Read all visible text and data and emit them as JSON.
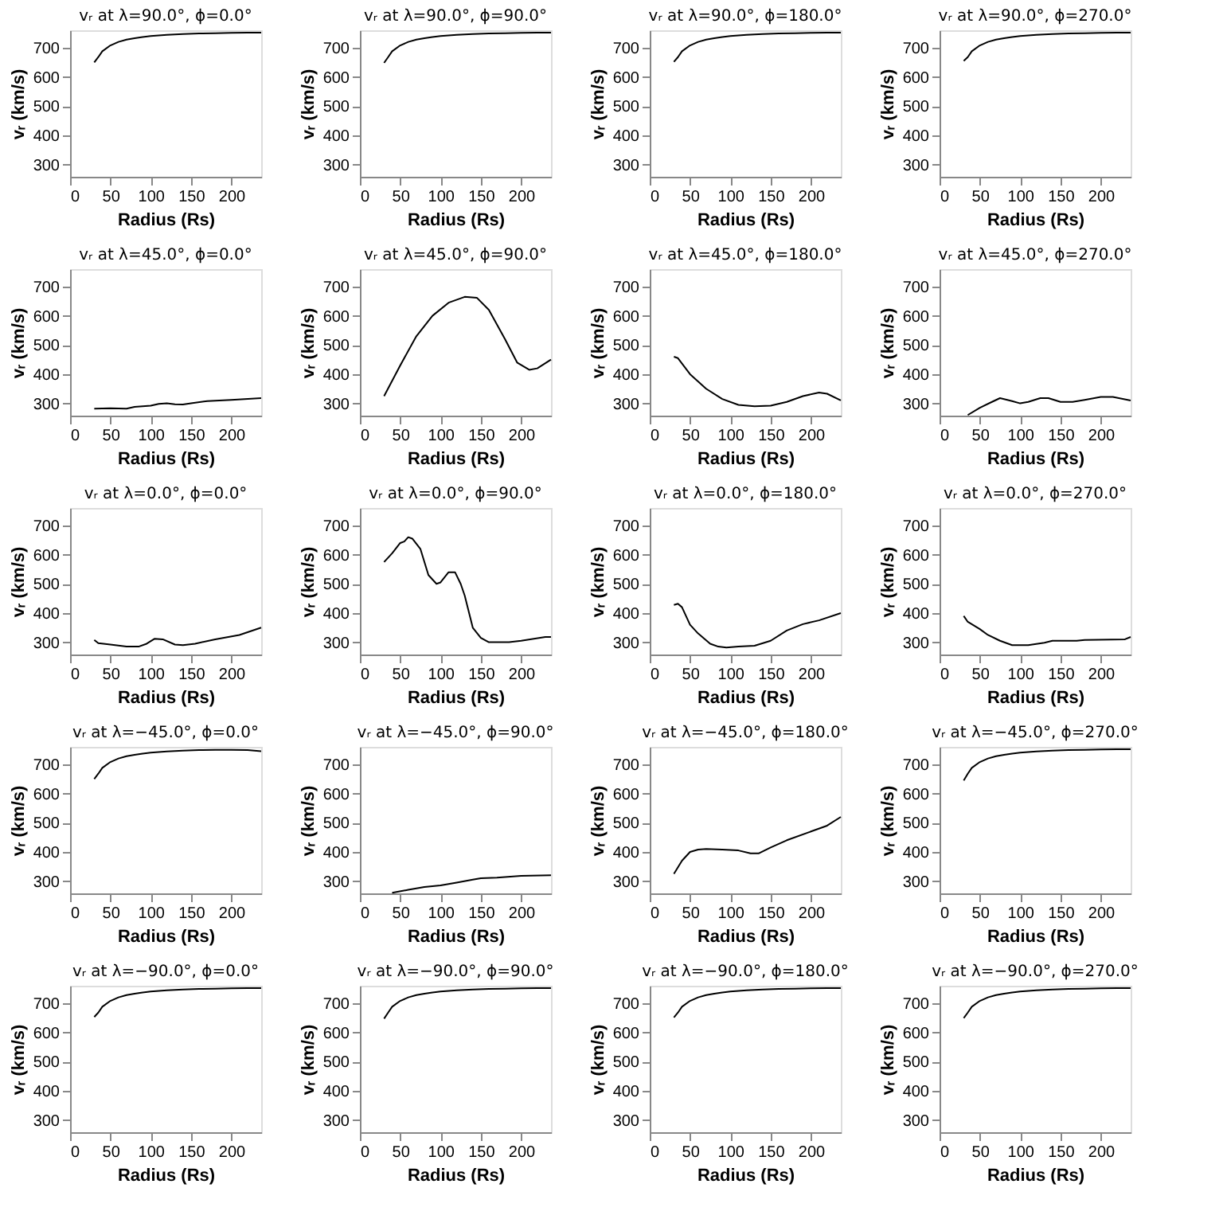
{
  "chart_data": [
    {
      "type": "line",
      "title": "vᵣ at λ=90.0°, ϕ=0.0°",
      "xlabel": "Radius (Rs)",
      "ylabel": "vᵣ (km/s)",
      "x": [
        30,
        35,
        40,
        50,
        60,
        70,
        80,
        90,
        100,
        120,
        140,
        160,
        180,
        200,
        220,
        237
      ],
      "values": [
        650,
        668,
        688,
        708,
        720,
        728,
        733,
        737,
        740,
        744,
        747,
        749,
        750,
        751,
        752,
        752
      ],
      "color": "#000000",
      "xlim": [
        0,
        237
      ],
      "ylim": [
        258,
        760
      ],
      "xticks": [
        0,
        50,
        100,
        150,
        200
      ],
      "yticks": [
        300,
        400,
        500,
        600,
        700
      ],
      "grid": false
    },
    {
      "type": "line",
      "title": "vᵣ at λ=90.0°, ϕ=90.0°",
      "xlabel": "Radius (Rs)",
      "ylabel": "vᵣ (km/s)",
      "x": [
        30,
        35,
        40,
        50,
        60,
        70,
        80,
        90,
        100,
        120,
        140,
        160,
        180,
        200,
        220,
        237
      ],
      "values": [
        648,
        668,
        688,
        708,
        720,
        728,
        733,
        737,
        740,
        744,
        747,
        749,
        750,
        751,
        752,
        752
      ],
      "color": "#000000",
      "xlim": [
        0,
        237
      ],
      "ylim": [
        258,
        760
      ],
      "xticks": [
        0,
        50,
        100,
        150,
        200
      ],
      "yticks": [
        300,
        400,
        500,
        600,
        700
      ],
      "grid": false
    },
    {
      "type": "line",
      "title": "vᵣ at λ=90.0°, ϕ=180.0°",
      "xlabel": "Radius (Rs)",
      "ylabel": "vᵣ (km/s)",
      "x": [
        30,
        35,
        40,
        50,
        60,
        70,
        80,
        90,
        100,
        120,
        140,
        160,
        180,
        200,
        220,
        237
      ],
      "values": [
        652,
        668,
        688,
        708,
        720,
        728,
        733,
        737,
        740,
        744,
        747,
        749,
        750,
        751,
        752,
        752
      ],
      "color": "#000000",
      "xlim": [
        0,
        237
      ],
      "ylim": [
        258,
        760
      ],
      "xticks": [
        0,
        50,
        100,
        150,
        200
      ],
      "yticks": [
        300,
        400,
        500,
        600,
        700
      ],
      "grid": false
    },
    {
      "type": "line",
      "title": "vᵣ at λ=90.0°, ϕ=270.0°",
      "xlabel": "Radius (Rs)",
      "ylabel": "vᵣ (km/s)",
      "x": [
        30,
        35,
        40,
        50,
        60,
        70,
        80,
        90,
        100,
        120,
        140,
        160,
        180,
        200,
        220,
        237
      ],
      "values": [
        655,
        668,
        688,
        708,
        720,
        728,
        733,
        737,
        740,
        744,
        747,
        749,
        750,
        751,
        752,
        752
      ],
      "color": "#000000",
      "xlim": [
        0,
        237
      ],
      "ylim": [
        258,
        760
      ],
      "xticks": [
        0,
        50,
        100,
        150,
        200
      ],
      "yticks": [
        300,
        400,
        500,
        600,
        700
      ],
      "grid": false
    },
    {
      "type": "line",
      "title": "vᵣ at λ=45.0°, ϕ=0.0°",
      "xlabel": "Radius (Rs)",
      "ylabel": "vᵣ (km/s)",
      "x": [
        30,
        50,
        70,
        80,
        100,
        110,
        120,
        130,
        140,
        150,
        170,
        200,
        237
      ],
      "values": [
        282,
        283,
        282,
        288,
        292,
        298,
        300,
        297,
        296,
        300,
        308,
        312,
        318
      ],
      "color": "#000000",
      "xlim": [
        0,
        237
      ],
      "ylim": [
        258,
        760
      ],
      "xticks": [
        0,
        50,
        100,
        150,
        200
      ],
      "yticks": [
        300,
        400,
        500,
        600,
        700
      ],
      "grid": false
    },
    {
      "type": "line",
      "title": "vᵣ at λ=45.0°, ϕ=90.0°",
      "xlabel": "Radius (Rs)",
      "ylabel": "vᵣ (km/s)",
      "x": [
        30,
        50,
        70,
        90,
        110,
        130,
        145,
        160,
        180,
        195,
        210,
        220,
        237
      ],
      "values": [
        325,
        430,
        530,
        600,
        645,
        665,
        662,
        620,
        520,
        440,
        415,
        420,
        450
      ],
      "color": "#000000",
      "xlim": [
        0,
        237
      ],
      "ylim": [
        258,
        760
      ],
      "xticks": [
        0,
        50,
        100,
        150,
        200
      ],
      "yticks": [
        300,
        400,
        500,
        600,
        700
      ],
      "grid": false
    },
    {
      "type": "line",
      "title": "vᵣ at λ=45.0°, ϕ=180.0°",
      "xlabel": "Radius (Rs)",
      "ylabel": "vᵣ (km/s)",
      "x": [
        30,
        35,
        50,
        70,
        90,
        110,
        130,
        150,
        170,
        190,
        210,
        220,
        237
      ],
      "values": [
        460,
        455,
        400,
        350,
        315,
        295,
        290,
        292,
        305,
        325,
        337,
        333,
        310
      ],
      "color": "#000000",
      "xlim": [
        0,
        237
      ],
      "ylim": [
        258,
        760
      ],
      "xticks": [
        0,
        50,
        100,
        150,
        200
      ],
      "yticks": [
        300,
        400,
        500,
        600,
        700
      ],
      "grid": false
    },
    {
      "type": "line",
      "title": "vᵣ at λ=45.0°, ϕ=270.0°",
      "xlabel": "Radius (Rs)",
      "ylabel": "vᵣ (km/s)",
      "x": [
        35,
        50,
        65,
        75,
        90,
        100,
        110,
        125,
        135,
        150,
        165,
        180,
        200,
        215,
        237
      ],
      "values": [
        260,
        285,
        305,
        318,
        308,
        300,
        305,
        318,
        318,
        305,
        305,
        312,
        322,
        322,
        310
      ],
      "color": "#000000",
      "xlim": [
        0,
        237
      ],
      "ylim": [
        258,
        760
      ],
      "xticks": [
        0,
        50,
        100,
        150,
        200
      ],
      "yticks": [
        300,
        400,
        500,
        600,
        700
      ],
      "grid": false
    },
    {
      "type": "line",
      "title": "vᵣ at λ=0.0°, ϕ=0.0°",
      "xlabel": "Radius (Rs)",
      "ylabel": "vᵣ (km/s)",
      "x": [
        30,
        35,
        50,
        70,
        85,
        95,
        105,
        115,
        130,
        140,
        155,
        180,
        210,
        237
      ],
      "values": [
        308,
        297,
        292,
        285,
        285,
        295,
        312,
        310,
        292,
        290,
        295,
        310,
        325,
        350
      ],
      "color": "#000000",
      "xlim": [
        0,
        237
      ],
      "ylim": [
        258,
        760
      ],
      "xticks": [
        0,
        50,
        100,
        150,
        200
      ],
      "yticks": [
        300,
        400,
        500,
        600,
        700
      ],
      "grid": false
    },
    {
      "type": "line",
      "title": "vᵣ at λ=0.0°, ϕ=90.0°",
      "xlabel": "Radius (Rs)",
      "ylabel": "vᵣ (km/s)",
      "x": [
        30,
        40,
        50,
        55,
        60,
        65,
        75,
        85,
        95,
        100,
        110,
        118,
        125,
        130,
        140,
        150,
        160,
        185,
        200,
        230,
        237
      ],
      "values": [
        575,
        605,
        640,
        645,
        660,
        655,
        620,
        530,
        500,
        505,
        540,
        540,
        500,
        460,
        350,
        315,
        300,
        300,
        305,
        318,
        318
      ],
      "color": "#000000",
      "xlim": [
        0,
        237
      ],
      "ylim": [
        258,
        760
      ],
      "xticks": [
        0,
        50,
        100,
        150,
        200
      ],
      "yticks": [
        300,
        400,
        500,
        600,
        700
      ],
      "grid": false
    },
    {
      "type": "line",
      "title": "vᵣ at λ=0.0°, ϕ=180.0°",
      "xlabel": "Radius (Rs)",
      "ylabel": "vᵣ (km/s)",
      "x": [
        30,
        35,
        40,
        50,
        60,
        75,
        85,
        95,
        110,
        130,
        150,
        170,
        190,
        210,
        237
      ],
      "values": [
        428,
        432,
        420,
        360,
        330,
        295,
        285,
        282,
        285,
        288,
        305,
        340,
        362,
        375,
        400
      ],
      "color": "#000000",
      "xlim": [
        0,
        237
      ],
      "ylim": [
        258,
        760
      ],
      "xticks": [
        0,
        50,
        100,
        150,
        200
      ],
      "yticks": [
        300,
        400,
        500,
        600,
        700
      ],
      "grid": false
    },
    {
      "type": "line",
      "title": "vᵣ at λ=0.0°, ϕ=270.0°",
      "xlabel": "Radius (Rs)",
      "ylabel": "vᵣ (km/s)",
      "x": [
        30,
        35,
        50,
        60,
        75,
        90,
        110,
        130,
        140,
        170,
        180,
        230,
        237
      ],
      "values": [
        390,
        370,
        345,
        325,
        305,
        290,
        290,
        298,
        305,
        305,
        308,
        310,
        318
      ],
      "color": "#000000",
      "xlim": [
        0,
        237
      ],
      "ylim": [
        258,
        760
      ],
      "xticks": [
        0,
        50,
        100,
        150,
        200
      ],
      "yticks": [
        300,
        400,
        500,
        600,
        700
      ],
      "grid": false
    },
    {
      "type": "line",
      "title": "vᵣ at λ=−45.0°, ϕ=0.0°",
      "xlabel": "Radius (Rs)",
      "ylabel": "vᵣ (km/s)",
      "x": [
        30,
        35,
        40,
        50,
        60,
        70,
        80,
        90,
        100,
        120,
        140,
        160,
        180,
        200,
        220,
        237
      ],
      "values": [
        650,
        668,
        688,
        708,
        720,
        728,
        733,
        737,
        740,
        744,
        747,
        749,
        750,
        750,
        749,
        745
      ],
      "color": "#000000",
      "xlim": [
        0,
        237
      ],
      "ylim": [
        258,
        760
      ],
      "xticks": [
        0,
        50,
        100,
        150,
        200
      ],
      "yticks": [
        300,
        400,
        500,
        600,
        700
      ],
      "grid": false
    },
    {
      "type": "line",
      "title": "vᵣ at λ=−45.0°, ϕ=90.0°",
      "xlabel": "Radius (Rs)",
      "ylabel": "vᵣ (km/s)",
      "x": [
        40,
        60,
        80,
        100,
        120,
        140,
        150,
        170,
        200,
        237
      ],
      "values": [
        260,
        270,
        280,
        285,
        295,
        305,
        310,
        312,
        318,
        320
      ],
      "color": "#000000",
      "xlim": [
        0,
        237
      ],
      "ylim": [
        258,
        760
      ],
      "xticks": [
        0,
        50,
        100,
        150,
        200
      ],
      "yticks": [
        300,
        400,
        500,
        600,
        700
      ],
      "grid": false
    },
    {
      "type": "line",
      "title": "vᵣ at λ=−45.0°, ϕ=180.0°",
      "xlabel": "Radius (Rs)",
      "ylabel": "vᵣ (km/s)",
      "x": [
        30,
        40,
        50,
        60,
        70,
        90,
        110,
        125,
        135,
        150,
        170,
        200,
        220,
        237
      ],
      "values": [
        325,
        370,
        400,
        408,
        410,
        408,
        405,
        395,
        395,
        415,
        440,
        470,
        490,
        520
      ],
      "color": "#000000",
      "xlim": [
        0,
        237
      ],
      "ylim": [
        258,
        760
      ],
      "xticks": [
        0,
        50,
        100,
        150,
        200
      ],
      "yticks": [
        300,
        400,
        500,
        600,
        700
      ],
      "grid": false
    },
    {
      "type": "line",
      "title": "vᵣ at λ=−45.0°, ϕ=270.0°",
      "xlabel": "Radius (Rs)",
      "ylabel": "vᵣ (km/s)",
      "x": [
        30,
        35,
        40,
        50,
        60,
        70,
        80,
        90,
        100,
        120,
        140,
        160,
        180,
        200,
        220,
        237
      ],
      "values": [
        645,
        668,
        688,
        708,
        720,
        728,
        733,
        737,
        740,
        744,
        747,
        749,
        750,
        751,
        752,
        752
      ],
      "color": "#000000",
      "xlim": [
        0,
        237
      ],
      "ylim": [
        258,
        760
      ],
      "xticks": [
        0,
        50,
        100,
        150,
        200
      ],
      "yticks": [
        300,
        400,
        500,
        600,
        700
      ],
      "grid": false
    },
    {
      "type": "line",
      "title": "vᵣ at λ=−90.0°, ϕ=0.0°",
      "xlabel": "Radius (Rs)",
      "ylabel": "vᵣ (km/s)",
      "x": [
        30,
        35,
        40,
        50,
        60,
        70,
        80,
        90,
        100,
        120,
        140,
        160,
        180,
        200,
        220,
        237
      ],
      "values": [
        653,
        668,
        688,
        708,
        720,
        728,
        733,
        737,
        740,
        744,
        747,
        749,
        750,
        751,
        752,
        752
      ],
      "color": "#000000",
      "xlim": [
        0,
        237
      ],
      "ylim": [
        258,
        760
      ],
      "xticks": [
        0,
        50,
        100,
        150,
        200
      ],
      "yticks": [
        300,
        400,
        500,
        600,
        700
      ],
      "grid": false
    },
    {
      "type": "line",
      "title": "vᵣ at λ=−90.0°, ϕ=90.0°",
      "xlabel": "Radius (Rs)",
      "ylabel": "vᵣ (km/s)",
      "x": [
        30,
        35,
        40,
        50,
        60,
        70,
        80,
        90,
        100,
        120,
        140,
        160,
        180,
        200,
        220,
        237
      ],
      "values": [
        647,
        668,
        688,
        708,
        720,
        728,
        733,
        737,
        740,
        744,
        747,
        749,
        750,
        751,
        752,
        752
      ],
      "color": "#000000",
      "xlim": [
        0,
        237
      ],
      "ylim": [
        258,
        760
      ],
      "xticks": [
        0,
        50,
        100,
        150,
        200
      ],
      "yticks": [
        300,
        400,
        500,
        600,
        700
      ],
      "grid": false
    },
    {
      "type": "line",
      "title": "vᵣ at λ=−90.0°, ϕ=180.0°",
      "xlabel": "Radius (Rs)",
      "ylabel": "vᵣ (km/s)",
      "x": [
        30,
        35,
        40,
        50,
        60,
        70,
        80,
        90,
        100,
        120,
        140,
        160,
        180,
        200,
        220,
        237
      ],
      "values": [
        651,
        668,
        688,
        708,
        720,
        728,
        733,
        737,
        740,
        744,
        747,
        749,
        750,
        751,
        752,
        752
      ],
      "color": "#000000",
      "xlim": [
        0,
        237
      ],
      "ylim": [
        258,
        760
      ],
      "xticks": [
        0,
        50,
        100,
        150,
        200
      ],
      "yticks": [
        300,
        400,
        500,
        600,
        700
      ],
      "grid": false
    },
    {
      "type": "line",
      "title": "vᵣ at λ=−90.0°, ϕ=270.0°",
      "xlabel": "Radius (Rs)",
      "ylabel": "vᵣ (km/s)",
      "x": [
        30,
        35,
        40,
        50,
        60,
        70,
        80,
        90,
        100,
        120,
        140,
        160,
        180,
        200,
        220,
        237
      ],
      "values": [
        649,
        668,
        688,
        708,
        720,
        728,
        733,
        737,
        740,
        744,
        747,
        749,
        750,
        751,
        752,
        752
      ],
      "color": "#000000",
      "xlim": [
        0,
        237
      ],
      "ylim": [
        258,
        760
      ],
      "xticks": [
        0,
        50,
        100,
        150,
        200
      ],
      "yticks": [
        300,
        400,
        500,
        600,
        700
      ],
      "grid": false
    }
  ]
}
